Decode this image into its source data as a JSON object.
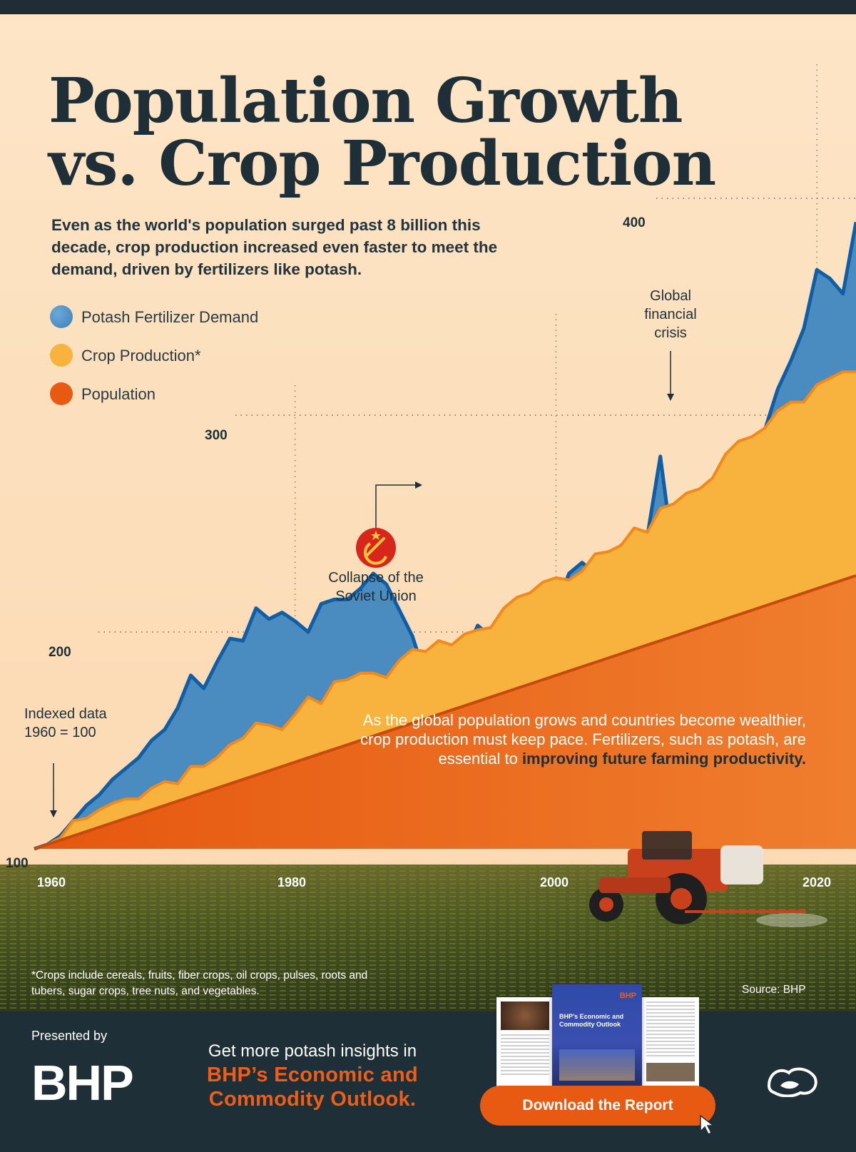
{
  "header": {
    "title": "Population Growth vs. Crop Production",
    "subtitle": "Even as the world's population surged past 8 billion this decade, crop production increased even faster to meet the demand, driven by fertilizers like potash."
  },
  "legend": {
    "items": [
      {
        "label": "Potash Fertilizer Demand",
        "color": "#4f93c8"
      },
      {
        "label": "Crop Production*",
        "color": "#f7b33d"
      },
      {
        "label": "Population",
        "color": "#e85a12"
      }
    ]
  },
  "annotations": {
    "indexed_line1": "Indexed data",
    "indexed_line2": "1960 = 100",
    "soviet_line1": "Collapse of the",
    "soviet_line2": "Soviet Union",
    "crisis_line1": "Global",
    "crisis_line2": "financial",
    "crisis_line3": "crisis"
  },
  "chart_data": {
    "type": "area",
    "title": "Population Growth vs. Crop Production",
    "xlabel": "",
    "ylabel": "",
    "xlim": [
      1960,
      2023
    ],
    "ylim": [
      100,
      430
    ],
    "y_ticks": [
      "100",
      "200",
      "300",
      "400"
    ],
    "x_ticks": [
      "1960",
      "1980",
      "2000",
      "2020"
    ],
    "x": [
      1960,
      1961,
      1962,
      1963,
      1964,
      1965,
      1966,
      1967,
      1968,
      1969,
      1970,
      1971,
      1972,
      1973,
      1974,
      1975,
      1976,
      1977,
      1978,
      1979,
      1980,
      1981,
      1982,
      1983,
      1984,
      1985,
      1986,
      1987,
      1988,
      1989,
      1990,
      1991,
      1992,
      1993,
      1994,
      1995,
      1996,
      1997,
      1998,
      1999,
      2000,
      2001,
      2002,
      2003,
      2004,
      2005,
      2006,
      2007,
      2008,
      2009,
      2010,
      2011,
      2012,
      2013,
      2014,
      2015,
      2016,
      2017,
      2018,
      2019,
      2020,
      2021,
      2022,
      2023
    ],
    "series": [
      {
        "name": "Potash Fertilizer Demand",
        "color": "#4f93c8",
        "values": [
          100,
          102,
          106,
          113,
          120,
          125,
          132,
          137,
          142,
          150,
          155,
          165,
          180,
          174,
          186,
          197,
          196,
          211,
          206,
          209,
          205,
          200,
          213,
          215,
          215,
          220,
          227,
          222,
          210,
          198,
          179,
          186,
          192,
          190,
          203,
          198,
          199,
          199,
          204,
          209,
          211,
          227,
          232,
          227,
          228,
          240,
          233,
          244,
          281,
          235,
          214,
          248,
          263,
          243,
          278,
          283,
          293,
          312,
          325,
          340,
          367,
          363,
          356,
          389
        ]
      },
      {
        "name": "Crop Production*",
        "color": "#f7b33d",
        "values": [
          100,
          102,
          105,
          113,
          114,
          118,
          121,
          123,
          123,
          128,
          131,
          130,
          138,
          138,
          142,
          148,
          151,
          158,
          157,
          155,
          162,
          170,
          167,
          177,
          178,
          181,
          181,
          179,
          187,
          192,
          191,
          196,
          194,
          199,
          201,
          202,
          211,
          216,
          218,
          223,
          225,
          224,
          228,
          236,
          237,
          240,
          248,
          246,
          257,
          259,
          264,
          266,
          271,
          282,
          288,
          290,
          294,
          302,
          306,
          306,
          314,
          317,
          320,
          320
        ]
      },
      {
        "name": "Population",
        "color": "#e85a12",
        "values": [
          100,
          102,
          104,
          106,
          108,
          110,
          112,
          114,
          116,
          118,
          120,
          122,
          124,
          126,
          128,
          130,
          132,
          134,
          136,
          138,
          140,
          142,
          144,
          146,
          148,
          150,
          152,
          154,
          156,
          158,
          160,
          162,
          164,
          166,
          168,
          170,
          172,
          174,
          176,
          178,
          180,
          182,
          184,
          186,
          188,
          190,
          192,
          194,
          196,
          198,
          200,
          202,
          204,
          206,
          208,
          210,
          212,
          214,
          216,
          218,
          220,
          222,
          224,
          226
        ]
      }
    ],
    "grid": "dotted"
  },
  "note": {
    "before": "As the global population grows and countries become wealthier, crop production must keep pace. Fertilizers, such as potash, are essential to ",
    "bold": "improving future farming productivity."
  },
  "footnote": "*Crops include cereals, fruits, fiber crops, oil crops, pulses, roots and tubers, sugar crops, tree nuts, and vegetables.",
  "source": "Source: BHP",
  "footer": {
    "presented_by": "Presented by",
    "logo": "BHP",
    "cta_line1": "Get more potash insights in",
    "cta_line2": "BHP’s Economic and Commodity Outlook.",
    "download_label": "Download the Report",
    "report_brand": "BHP",
    "report_title": "BHP’s Economic and Commodity Outlook"
  }
}
